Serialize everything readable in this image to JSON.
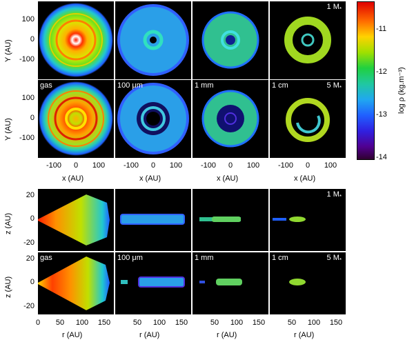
{
  "top_row1_labels": {
    "mass": "1 M",
    "mass_sub": "*"
  },
  "top_row2_labels": {
    "gas": "gas",
    "p2": "100 μm",
    "p3": "1 mm",
    "p4": "1 cm",
    "mass": "5 M",
    "mass_sub": "*"
  },
  "bottom_row1_labels": {
    "mass": "1 M",
    "mass_sub": "*"
  },
  "bottom_row2_labels": {
    "gas": "gas",
    "p2": "100 μm",
    "p3": "1 mm",
    "p4": "1 cm",
    "mass": "5 M",
    "mass_sub": "*"
  },
  "axes": {
    "top_ylabel": "Y (AU)",
    "top_xlabel": "x (AU)",
    "top_yticks": [
      "100",
      "0",
      "-100"
    ],
    "top_xticks": [
      "-100",
      "0",
      "100"
    ],
    "bottom_ylabel": "z (AU)",
    "bottom_xlabel": "r (AU)",
    "bottom_yticks": [
      "20",
      "0",
      "-20"
    ],
    "bottom_xticks": [
      "0",
      "50",
      "100",
      "150"
    ]
  },
  "colorbar": {
    "label": "log ρ (kg.m⁻³)",
    "ticks": [
      "-11",
      "-12",
      "-13",
      "-14"
    ]
  },
  "colors": {
    "panel_bg": "#000000",
    "label": "#ffffff"
  }
}
